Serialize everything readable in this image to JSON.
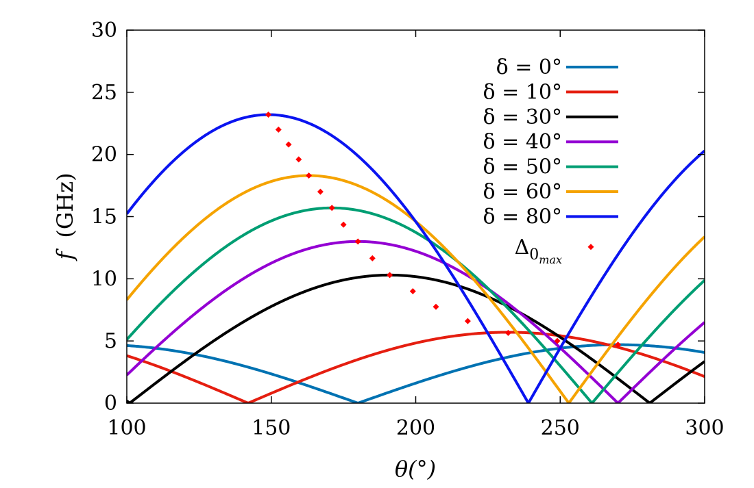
{
  "chart_data": {
    "type": "line",
    "xlabel": "θ(°)",
    "ylabel": "f (GHz)",
    "ylabel_symbol": "f",
    "ylabel_units": "(GHz)",
    "xlim": [
      100,
      300
    ],
    "ylim": [
      0,
      30
    ],
    "xticks": [
      100,
      150,
      200,
      250,
      300
    ],
    "yticks": [
      0,
      5,
      10,
      15,
      20,
      25,
      30
    ],
    "grid": false,
    "legend_position": "top-right",
    "series": [
      {
        "name": "δ = 0°",
        "delta": 0,
        "color": "#0072b2",
        "x_center": 180,
        "zero": 180,
        "peak_x": 270,
        "peak": 4.7
      },
      {
        "name": "δ = 10°",
        "delta": 10,
        "color": "#e51e10",
        "x_center": 232,
        "zero": 142,
        "peak_x": 232,
        "peak": 5.7
      },
      {
        "name": "δ = 30°",
        "delta": 30,
        "color": "#000000",
        "x_center": 191,
        "zero": 101,
        "peak_x": 191,
        "peak": 10.3
      },
      {
        "name": "δ = 40°",
        "delta": 40,
        "color": "#9400d3",
        "x_center": 180,
        "zero": 270,
        "peak_x": 180,
        "peak": 13.0
      },
      {
        "name": "δ = 50°",
        "delta": 50,
        "color": "#009e73",
        "x_center": 171,
        "zero": 261,
        "peak_x": 171,
        "peak": 15.7
      },
      {
        "name": "δ = 60°",
        "delta": 60,
        "color": "#f5a300",
        "x_center": 163,
        "zero": 253,
        "peak_x": 163,
        "peak": 18.3
      },
      {
        "name": "δ = 80°",
        "delta": 80,
        "color": "#0a14f0",
        "x_center": 149,
        "zero": 239,
        "peak_x": 149,
        "peak": 23.2
      }
    ],
    "markers": {
      "name": "Δ0max",
      "name_base": "Δ",
      "name_sub": "0",
      "name_subsub": "max",
      "color": "#ff0000",
      "points": [
        [
          149,
          23.2
        ],
        [
          152.5,
          22.0
        ],
        [
          156,
          20.8
        ],
        [
          159.5,
          19.6
        ],
        [
          163,
          18.3
        ],
        [
          167,
          17.0
        ],
        [
          171,
          15.7
        ],
        [
          175,
          14.35
        ],
        [
          180,
          13.0
        ],
        [
          185,
          11.65
        ],
        [
          191,
          10.3
        ],
        [
          199,
          9.0
        ],
        [
          207,
          7.75
        ],
        [
          218,
          6.6
        ],
        [
          232,
          5.65
        ],
        [
          249,
          5.0
        ],
        [
          270,
          4.7
        ]
      ]
    }
  }
}
